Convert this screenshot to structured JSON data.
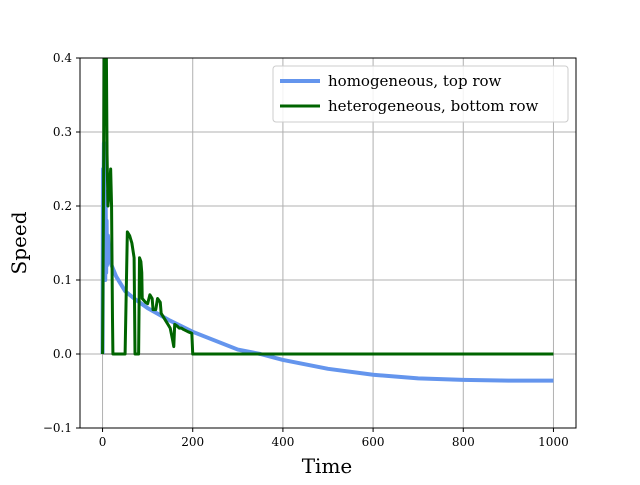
{
  "chart_data": {
    "type": "line",
    "title": "",
    "xlabel": "Time",
    "ylabel": "Speed",
    "xlim": [
      -50,
      1050
    ],
    "ylim": [
      -0.1,
      0.4
    ],
    "xticks": [
      0,
      200,
      400,
      600,
      800,
      1000
    ],
    "xtick_labels": [
      "0",
      "200",
      "400",
      "600",
      "800",
      "1000"
    ],
    "yticks": [
      -0.1,
      0.0,
      0.1,
      0.2,
      0.3,
      0.4
    ],
    "ytick_labels": [
      "−0.1",
      "0.0",
      "0.1",
      "0.2",
      "0.3",
      "0.4"
    ],
    "grid": true,
    "legend_position": "top-right",
    "reference_line_y": 0.0,
    "series": [
      {
        "name": "homogeneous, top row",
        "color": "#6495ed",
        "points": [
          [
            0,
            0.0
          ],
          [
            1,
            0.25
          ],
          [
            2,
            0.21
          ],
          [
            3,
            0.285
          ],
          [
            4,
            0.12
          ],
          [
            5,
            0.22
          ],
          [
            6,
            0.1
          ],
          [
            7,
            0.2
          ],
          [
            8,
            0.11
          ],
          [
            9,
            0.18
          ],
          [
            10,
            0.12
          ],
          [
            12,
            0.16
          ],
          [
            15,
            0.13
          ],
          [
            20,
            0.12
          ],
          [
            30,
            0.105
          ],
          [
            40,
            0.095
          ],
          [
            50,
            0.085
          ],
          [
            70,
            0.075
          ],
          [
            100,
            0.062
          ],
          [
            150,
            0.045
          ],
          [
            200,
            0.03
          ],
          [
            250,
            0.018
          ],
          [
            300,
            0.006
          ],
          [
            350,
            0.0
          ],
          [
            400,
            -0.008
          ],
          [
            500,
            -0.02
          ],
          [
            600,
            -0.028
          ],
          [
            700,
            -0.033
          ],
          [
            800,
            -0.035
          ],
          [
            900,
            -0.036
          ],
          [
            1000,
            -0.036
          ]
        ]
      },
      {
        "name": "heterogeneous, bottom row",
        "color": "#006400",
        "points": [
          [
            0,
            0.0
          ],
          [
            2,
            0.2
          ],
          [
            4,
            0.45
          ],
          [
            8,
            0.45
          ],
          [
            10,
            0.27
          ],
          [
            12,
            0.2
          ],
          [
            15,
            0.22
          ],
          [
            18,
            0.25
          ],
          [
            20,
            0.2
          ],
          [
            22,
            0.05
          ],
          [
            23,
            0.0
          ],
          [
            50,
            0.0
          ],
          [
            55,
            0.165
          ],
          [
            60,
            0.16
          ],
          [
            65,
            0.15
          ],
          [
            70,
            0.13
          ],
          [
            72,
            0.0
          ],
          [
            80,
            0.0
          ],
          [
            82,
            0.13
          ],
          [
            85,
            0.125
          ],
          [
            87,
            0.11
          ],
          [
            88,
            0.075
          ],
          [
            95,
            0.07
          ],
          [
            100,
            0.068
          ],
          [
            105,
            0.08
          ],
          [
            110,
            0.075
          ],
          [
            112,
            0.06
          ],
          [
            118,
            0.06
          ],
          [
            122,
            0.075
          ],
          [
            128,
            0.07
          ],
          [
            130,
            0.055
          ],
          [
            135,
            0.05
          ],
          [
            140,
            0.045
          ],
          [
            145,
            0.04
          ],
          [
            150,
            0.035
          ],
          [
            155,
            0.02
          ],
          [
            158,
            0.01
          ],
          [
            160,
            0.04
          ],
          [
            165,
            0.038
          ],
          [
            170,
            0.035
          ],
          [
            175,
            0.035
          ],
          [
            180,
            0.033
          ],
          [
            190,
            0.03
          ],
          [
            198,
            0.028
          ],
          [
            200,
            0.0
          ],
          [
            1000,
            0.0
          ]
        ]
      }
    ]
  }
}
